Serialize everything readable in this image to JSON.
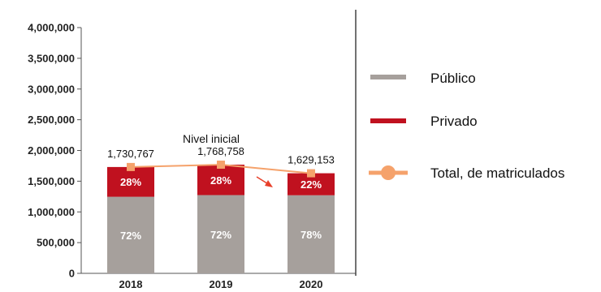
{
  "chart_data": {
    "type": "bar",
    "stacked": true,
    "categories": [
      "2018",
      "2019",
      "2020"
    ],
    "series": [
      {
        "name": "Público",
        "values": [
          1246152,
          1273506,
          1270739
        ],
        "pct_labels": [
          "72%",
          "72%",
          "78%"
        ],
        "color": "#a6a09c"
      },
      {
        "name": "Privado",
        "values": [
          484615,
          495252,
          358414
        ],
        "pct_labels": [
          "28%",
          "28%",
          "22%"
        ],
        "color": "#c0111f"
      }
    ],
    "line": {
      "name": "Total, de matriculados",
      "values": [
        1730767,
        1768758,
        1629153
      ],
      "labels": [
        "1,730,767",
        "1,768,758",
        "1,629,153"
      ],
      "color": "#f5a26b"
    },
    "annotation": "Nivel inicial",
    "arrow_color": "#e8402a",
    "yticks": [
      "0",
      "500,000",
      "1,000,000",
      "1,500,000",
      "2,000,000",
      "2,500,000",
      "3,000,000",
      "3,500,000",
      "4,000,000"
    ],
    "ylim": [
      0,
      4000000
    ],
    "grid": false,
    "legend_position": "right"
  },
  "legend": {
    "items": [
      {
        "label": "Público",
        "color": "#a6a09c"
      },
      {
        "label": "Privado",
        "color": "#c0111f"
      },
      {
        "label": "Total, de matriculados",
        "color": "#f5a26b"
      }
    ]
  }
}
